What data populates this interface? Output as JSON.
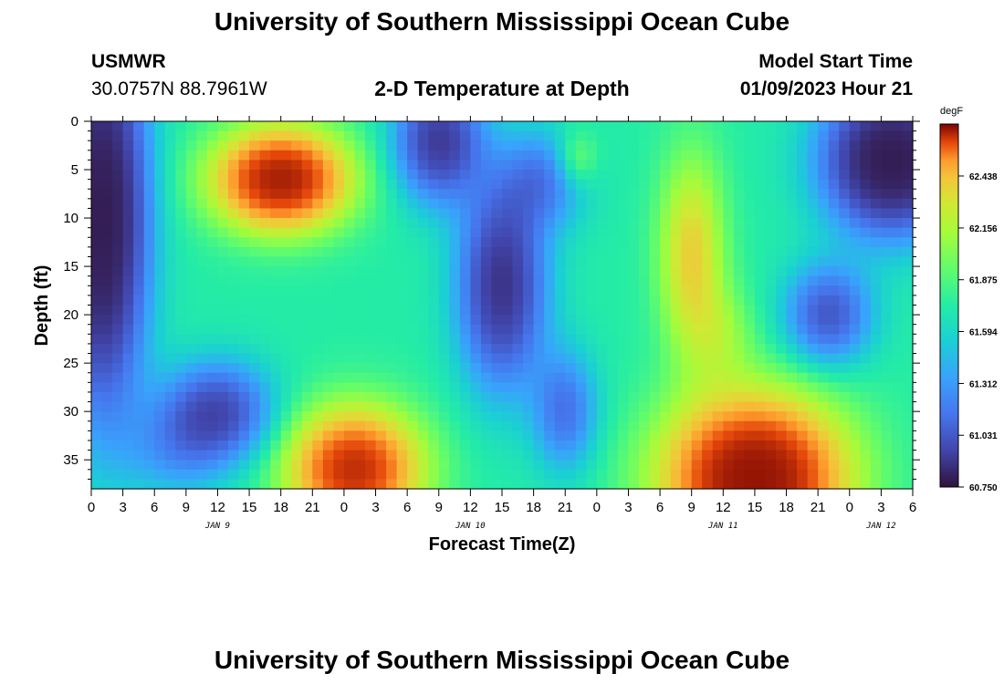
{
  "header": {
    "title_top": "University of Southern Mississippi Ocean Cube",
    "station_id": "USMWR",
    "station_coords": "30.0757N  88.7961W",
    "plot_title": "2-D Temperature at Depth",
    "model_start_label": "Model Start Time",
    "model_start_value": "01/09/2023 Hour 21",
    "title_bottom": "University of Southern Mississippi Ocean Cube"
  },
  "chart_data": {
    "type": "heatmap",
    "title": "2-D Temperature at Depth",
    "xlabel": "Forecast Time(Z)",
    "ylabel": "Depth (ft)",
    "x_ticks": [
      "0",
      "3",
      "6",
      "9",
      "12",
      "15",
      "18",
      "21",
      "0",
      "3",
      "6",
      "9",
      "12",
      "15",
      "18",
      "21",
      "0",
      "3",
      "6",
      "9",
      "12",
      "15",
      "18",
      "21",
      "0",
      "3",
      "6"
    ],
    "x_range_hours": [
      0,
      78
    ],
    "day_labels": [
      {
        "label": "JAN 9",
        "hour": 12
      },
      {
        "label": "JAN 10",
        "hour": 36
      },
      {
        "label": "JAN 11",
        "hour": 60
      },
      {
        "label": "JAN 12",
        "hour": 75
      }
    ],
    "y_ticks": [
      0,
      5,
      10,
      15,
      20,
      25,
      30,
      35
    ],
    "ylim": [
      0,
      38
    ],
    "colorbar": {
      "unit": "degF",
      "min": 60.75,
      "max": 62.72,
      "tick_labels": [
        "62.438",
        "62.156",
        "61.875",
        "61.594",
        "61.312",
        "61.031",
        "60.750"
      ],
      "tick_values": [
        62.438,
        62.156,
        61.875,
        61.594,
        61.312,
        61.031,
        60.75
      ]
    },
    "grid_step_hours": 1,
    "grid_step_ft": 1,
    "features": [
      {
        "hour": 1,
        "depth": 10,
        "dh": 4,
        "dd": 18,
        "value": -1.9
      },
      {
        "hour": 18,
        "depth": 6,
        "dh": 6,
        "dd": 5,
        "value": 1.9
      },
      {
        "hour": 25,
        "depth": 36,
        "dh": 6,
        "dd": 6,
        "value": 1.7
      },
      {
        "hour": 12,
        "depth": 30,
        "dh": 5,
        "dd": 5,
        "value": -1.0
      },
      {
        "hour": 33,
        "depth": 2,
        "dh": 4,
        "dd": 6,
        "value": -1.2
      },
      {
        "hour": 39,
        "depth": 17,
        "dh": 4,
        "dd": 10,
        "value": -1.3
      },
      {
        "hour": 45,
        "depth": 30,
        "dh": 3,
        "dd": 6,
        "value": -0.7
      },
      {
        "hour": 43,
        "depth": 6,
        "dh": 4,
        "dd": 5,
        "value": -0.6
      },
      {
        "hour": 46,
        "depth": 4,
        "dh": 2,
        "dd": 3,
        "value": 0.4
      },
      {
        "hour": 57,
        "depth": 14,
        "dh": 3,
        "dd": 10,
        "value": 0.8
      },
      {
        "hour": 63,
        "depth": 37,
        "dh": 8,
        "dd": 8,
        "value": 2.2
      },
      {
        "hour": 76,
        "depth": 4,
        "dh": 6,
        "dd": 7,
        "value": -1.9
      },
      {
        "hour": 70,
        "depth": 20,
        "dh": 4,
        "dd": 5,
        "value": -0.9
      },
      {
        "hour": 60,
        "depth": 22,
        "dh": 3,
        "dd": 5,
        "value": 0.3
      },
      {
        "hour": 8,
        "depth": 34,
        "dh": 5,
        "dd": 5,
        "value": -0.4
      }
    ]
  }
}
